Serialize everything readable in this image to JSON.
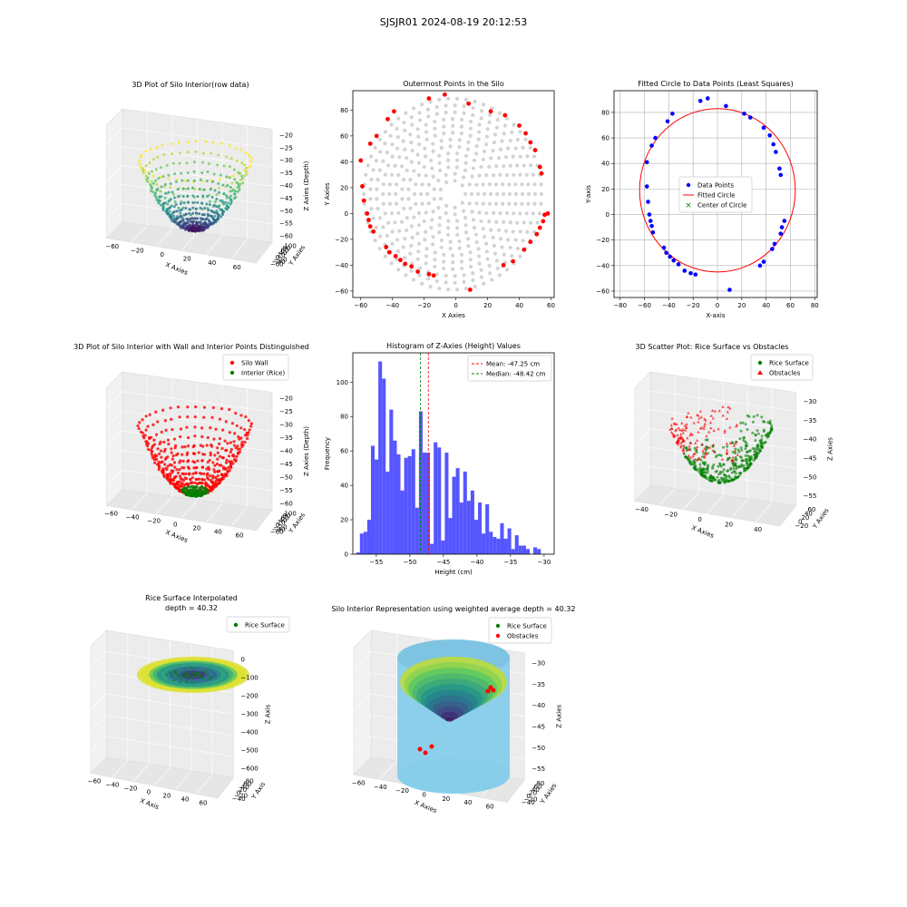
{
  "figure_title": "SJSJR01 2024-08-19 20:12:53",
  "colors": {
    "viridis": [
      "#440154",
      "#3b528b",
      "#21918c",
      "#5ec962",
      "#fde725"
    ],
    "red": "#ff0000",
    "green": "#008000",
    "blue": "#0000ff",
    "gray": "#d3d3d3",
    "hist_blue": "#4444ff",
    "sky": "#87ceeb"
  },
  "chart_data": [
    {
      "id": "p1",
      "type": "scatter3d",
      "title": "3D Plot of Silo Interior(row data)",
      "xlabel": "X Axies",
      "ylabel": "Y Axies",
      "zlabel": "Z Axies (Depth)",
      "xticks": [
        "−60",
        "−20",
        "0",
        "20",
        "40",
        "60"
      ],
      "yticks": [
        "100",
        "80",
        "60",
        "40",
        "20",
        "0",
        "−20",
        "−40",
        "−60"
      ],
      "zticks": [
        "−20",
        "−25",
        "−30",
        "−35",
        "−40",
        "−45",
        "−50",
        "−55",
        "−60"
      ],
      "xlim": [
        -60,
        60
      ],
      "ylim": [
        -60,
        100
      ],
      "zlim": [
        -60,
        -20
      ]
    },
    {
      "id": "p2",
      "type": "scatter",
      "title": "Outermost Points in the Silo",
      "xlabel": "X Axies",
      "ylabel": "Y Axies",
      "xlim": [
        -65,
        62
      ],
      "ylim": [
        -65,
        95
      ],
      "xticks": [
        -60,
        -40,
        -20,
        0,
        20,
        40,
        60
      ],
      "yticks": [
        -60,
        -40,
        -20,
        0,
        20,
        40,
        60,
        80
      ],
      "outer_points": [
        [
          -60,
          41
        ],
        [
          -59,
          21
        ],
        [
          -58,
          10
        ],
        [
          -56,
          0
        ],
        [
          -55,
          -5
        ],
        [
          -54,
          -10
        ],
        [
          -52,
          -14
        ],
        [
          -54,
          54
        ],
        [
          -50,
          60
        ],
        [
          -44,
          -26
        ],
        [
          -42,
          -30
        ],
        [
          -38,
          -33
        ],
        [
          -35,
          -36
        ],
        [
          -32,
          -39
        ],
        [
          -28,
          -41
        ],
        [
          -43,
          73
        ],
        [
          -39,
          79
        ],
        [
          -24,
          -45
        ],
        [
          -17,
          -47
        ],
        [
          -14,
          -48
        ],
        [
          -17,
          89
        ],
        [
          -7,
          92
        ],
        [
          8,
          85
        ],
        [
          9,
          -59
        ],
        [
          22,
          79
        ],
        [
          31,
          76
        ],
        [
          30,
          -40
        ],
        [
          36,
          -37
        ],
        [
          40,
          68
        ],
        [
          44,
          62
        ],
        [
          43,
          -28
        ],
        [
          47,
          -22
        ],
        [
          47,
          55
        ],
        [
          50,
          49
        ],
        [
          51,
          -16
        ],
        [
          53,
          -11
        ],
        [
          53,
          36
        ],
        [
          54,
          31
        ],
        [
          55,
          -6
        ],
        [
          56,
          -1
        ],
        [
          58,
          0
        ]
      ]
    },
    {
      "id": "p3",
      "type": "scatter",
      "title": "Fitted Circle to Data Points (Least Squares)",
      "xlabel": "X-axis",
      "ylabel": "Y-axis",
      "xlim": [
        -85,
        82
      ],
      "ylim": [
        -65,
        97
      ],
      "xticks": [
        -80,
        -60,
        -40,
        -20,
        0,
        20,
        40,
        60,
        80
      ],
      "yticks": [
        -60,
        -40,
        -20,
        0,
        20,
        40,
        60,
        80
      ],
      "circle": {
        "cx": 0,
        "cy": 19,
        "r": 64
      },
      "legend": [
        "Data Points",
        "Fitted Circle",
        "Center of Circle"
      ],
      "points": [
        [
          -58,
          41
        ],
        [
          -58,
          22
        ],
        [
          -57,
          10
        ],
        [
          -56,
          0
        ],
        [
          -55,
          -5
        ],
        [
          -54,
          -9
        ],
        [
          -53,
          -14
        ],
        [
          -54,
          54
        ],
        [
          -51,
          60
        ],
        [
          -44,
          -26
        ],
        [
          -42,
          -30
        ],
        [
          -39,
          -33
        ],
        [
          -36,
          -36
        ],
        [
          -32,
          -39
        ],
        [
          -27,
          -44
        ],
        [
          -41,
          73
        ],
        [
          -37,
          79
        ],
        [
          -22,
          -46
        ],
        [
          -18,
          -47
        ],
        [
          -14,
          89
        ],
        [
          -8,
          91
        ],
        [
          7,
          85
        ],
        [
          10,
          -59
        ],
        [
          22,
          79
        ],
        [
          27,
          76
        ],
        [
          35,
          -40
        ],
        [
          38,
          -37
        ],
        [
          38,
          68
        ],
        [
          43,
          62
        ],
        [
          45,
          -27
        ],
        [
          47,
          -23
        ],
        [
          46,
          55
        ],
        [
          48,
          49
        ],
        [
          52,
          -15
        ],
        [
          53,
          -10
        ],
        [
          51,
          36
        ],
        [
          52,
          31
        ],
        [
          55,
          -5
        ]
      ]
    },
    {
      "id": "p4",
      "type": "scatter3d",
      "title": "3D Plot of Silo Interior with Wall and Interior Points Distinguished",
      "legend": [
        "Silo Wall",
        "Interior (Rice)"
      ],
      "xlabel": "X Axies",
      "ylabel": "Y Axies",
      "zlabel": "Z Axies (Depth)",
      "xticks": [
        "−60",
        "−40",
        "−20",
        "0",
        "20",
        "40",
        "60"
      ],
      "yticks": [
        "100",
        "80",
        "60",
        "40",
        "20",
        "0",
        "−20",
        "−40",
        "−60"
      ],
      "zticks": [
        "−20",
        "−25",
        "−30",
        "−35",
        "−40",
        "−45",
        "−50",
        "−55",
        "−60"
      ]
    },
    {
      "id": "p5",
      "type": "histogram",
      "title": "Histogram of Z-Axies (Height) Values",
      "xlabel": "Height (cm)",
      "ylabel": "Frequency",
      "xlim": [
        -58.5,
        -28.5
      ],
      "ylim": [
        0,
        117
      ],
      "xticks": [
        -55,
        -50,
        -45,
        -40,
        -35,
        -30
      ],
      "yticks": [
        0,
        20,
        40,
        60,
        80,
        100
      ],
      "bin_start": -58,
      "bin_width": 0.55,
      "counts": [
        1,
        12,
        13,
        20,
        63,
        55,
        112,
        102,
        48,
        84,
        66,
        58,
        37,
        56,
        57,
        61,
        27,
        83,
        59,
        59,
        6,
        65,
        62,
        8,
        59,
        21,
        45,
        50,
        30,
        48,
        31,
        37,
        20,
        30,
        12,
        29,
        13,
        10,
        9,
        18,
        9,
        15,
        3,
        11,
        5,
        5,
        3,
        0,
        4,
        3
      ],
      "mean": -47.25,
      "median": -48.42,
      "legend": [
        "Mean: -47.25 cm",
        "Median: -48.42 cm"
      ]
    },
    {
      "id": "p6",
      "type": "scatter3d",
      "title": "3D Scatter Plot: Rice Surface vs Obstacles",
      "legend": [
        "Rice Surface",
        "Obstacles"
      ],
      "xlabel": "X Axies",
      "ylabel": "Y Axies",
      "zlabel": "Z Axies",
      "xticks": [
        "−40",
        "−20",
        "0",
        "20",
        "40"
      ],
      "yticks": [
        "60",
        "40",
        "20",
        "0",
        "−20"
      ],
      "zticks": [
        "−30",
        "−35",
        "−40",
        "−45",
        "−50",
        "−55"
      ]
    },
    {
      "id": "p7",
      "type": "surface3d",
      "title": "Rice Surface Interpolated",
      "subtitle": "depth = 40.32",
      "legend": [
        "Rice Surface"
      ],
      "xlabel": "X Axis",
      "ylabel": "Y Axis",
      "zlabel": "Z Axis",
      "xticks": [
        "−60",
        "−40",
        "−20",
        "0",
        "20",
        "40",
        "60"
      ],
      "yticks": [
        "80",
        "60",
        "40",
        "20",
        "0",
        "−20",
        "−40"
      ],
      "zticks": [
        "0",
        "−100",
        "−200",
        "−300",
        "−400",
        "−500",
        "−600"
      ]
    },
    {
      "id": "p8",
      "type": "surface3d",
      "title": "Silo Interior Representation using weighted average depth = 40.32",
      "legend": [
        "Rice Surface",
        "Obstacles"
      ],
      "xlabel": "X Axies",
      "ylabel": "Y Axies",
      "zlabel": "Z Axies",
      "xticks": [
        "−60",
        "−40",
        "−20",
        "0",
        "20",
        "40",
        "60"
      ],
      "yticks": [
        "80",
        "60",
        "40",
        "20",
        "0",
        "−20",
        "−40"
      ],
      "zticks": [
        "−30",
        "−35",
        "−40",
        "−45",
        "−50",
        "−55"
      ]
    }
  ]
}
